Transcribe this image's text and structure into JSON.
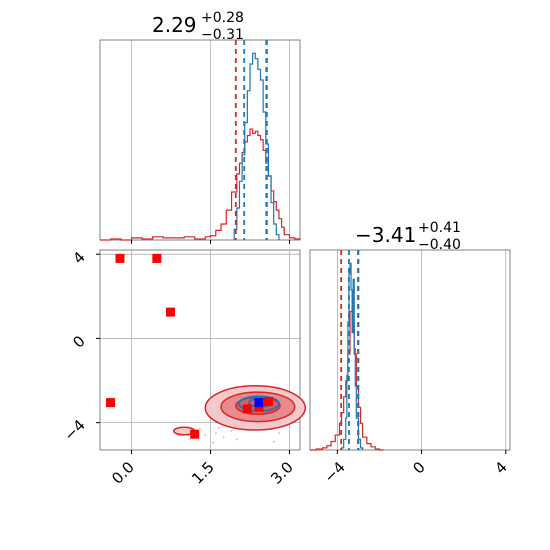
{
  "colors": {
    "red": "#d62728",
    "blue": "#1f77b4",
    "marker_red": "#ff0000",
    "marker_blue": "#0000ff",
    "grid": "#b0b0b0",
    "frame": "#808080",
    "fill_light": "#f4c9cb",
    "fill_mid": "#e98a8f",
    "fill_dark": "#df5a61"
  },
  "chart_data": [
    {
      "type": "histogram",
      "panel": "top-left",
      "title_value": "2.29",
      "title_plus": "+0.28",
      "title_minus": "−0.31",
      "xlim": [
        -0.6,
        3.2
      ],
      "grid": true,
      "quantile_lines": {
        "red": [
          1.98,
          2.57
        ],
        "blue": [
          2.14,
          2.56
        ]
      },
      "series": [
        {
          "color": "red",
          "bin_edges": [
            -0.6,
            -0.4,
            -0.2,
            0.0,
            0.2,
            0.4,
            0.6,
            0.8,
            1.0,
            1.2,
            1.4,
            1.5,
            1.6,
            1.7,
            1.8,
            1.9,
            2.0,
            2.05,
            2.1,
            2.15,
            2.2,
            2.25,
            2.3,
            2.35,
            2.4,
            2.45,
            2.5,
            2.55,
            2.6,
            2.65,
            2.7,
            2.75,
            2.8,
            2.85,
            2.9,
            3.0,
            3.1,
            3.2
          ],
          "heights": [
            0,
            1,
            0,
            2,
            1,
            3,
            2,
            2,
            3,
            1,
            3,
            4,
            9,
            15,
            28,
            45,
            62,
            72,
            82,
            92,
            98,
            104,
            100,
            102,
            98,
            94,
            84,
            72,
            60,
            46,
            36,
            28,
            20,
            12,
            5,
            2,
            1
          ]
        },
        {
          "color": "blue",
          "bin_edges": [
            1.95,
            2.0,
            2.05,
            2.1,
            2.15,
            2.2,
            2.25,
            2.3,
            2.35,
            2.4,
            2.45,
            2.5,
            2.55,
            2.6,
            2.65,
            2.7,
            2.75,
            2.8
          ],
          "heights": [
            10,
            30,
            55,
            80,
            110,
            140,
            165,
            175,
            170,
            160,
            150,
            120,
            90,
            60,
            35,
            15,
            5
          ]
        }
      ]
    },
    {
      "type": "scatter",
      "panel": "bottom-left",
      "xlim": [
        -0.6,
        3.2
      ],
      "ylim": [
        -5.3,
        4.2
      ],
      "xticks": [
        "0.0",
        "1.5",
        "3.0"
      ],
      "xtick_values": [
        0.0,
        1.5,
        3.0
      ],
      "yticks": [
        "4",
        "0",
        "−4"
      ],
      "ytick_values": [
        4,
        0,
        -4
      ],
      "grid": true,
      "red_points": [
        [
          -0.22,
          3.8
        ],
        [
          0.48,
          3.8
        ],
        [
          0.74,
          1.25
        ],
        [
          -0.4,
          -3.05
        ],
        [
          1.2,
          -4.55
        ],
        [
          2.2,
          -3.35
        ],
        [
          2.6,
          -3.0
        ],
        [
          2.42,
          -3.25
        ]
      ],
      "blue_points": [
        [
          2.42,
          -3.05
        ]
      ],
      "contours": {
        "red_fills": [
          {
            "cx": 2.35,
            "cy": -3.3,
            "rx": 0.95,
            "ry": 1.05,
            "level": "light"
          },
          {
            "cx": 2.4,
            "cy": -3.25,
            "rx": 0.7,
            "ry": 0.7,
            "level": "mid"
          },
          {
            "cx": 2.4,
            "cy": -3.2,
            "rx": 0.42,
            "ry": 0.4,
            "level": "dark"
          }
        ],
        "blue_lines": [
          {
            "cx": 2.42,
            "cy": -3.1,
            "rx": 0.38,
            "ry": 0.35
          },
          {
            "cx": 2.45,
            "cy": -3.05,
            "rx": 0.22,
            "ry": 0.2
          }
        ],
        "tail": {
          "cx": 1.0,
          "cy": -4.4,
          "rx": 0.2,
          "ry": 0.18
        }
      }
    },
    {
      "type": "histogram",
      "panel": "bottom-right",
      "title_value": "−3.41",
      "title_plus": "+0.41",
      "title_minus": "−0.40",
      "xlim": [
        -5.3,
        4.2
      ],
      "xticks": [
        "−4",
        "0",
        "4"
      ],
      "xtick_values": [
        -4,
        0,
        4
      ],
      "grid": true,
      "quantile_lines": {
        "red": [
          -3.82,
          -3.0
        ],
        "blue": [
          -3.45,
          -3.02
        ]
      },
      "series": [
        {
          "color": "red",
          "bin_edges": [
            -5.3,
            -5.0,
            -4.7,
            -4.5,
            -4.3,
            -4.1,
            -3.9,
            -3.8,
            -3.7,
            -3.6,
            -3.5,
            -3.4,
            -3.3,
            -3.2,
            -3.1,
            -3.0,
            -2.9,
            -2.8,
            -2.6,
            -2.4,
            -2.2,
            -2.0,
            -1.8
          ],
          "heights": [
            0,
            1,
            2,
            4,
            8,
            14,
            25,
            35,
            50,
            65,
            90,
            130,
            120,
            90,
            60,
            40,
            25,
            12,
            6,
            3,
            1,
            0
          ]
        },
        {
          "color": "blue",
          "bin_edges": [
            -3.8,
            -3.7,
            -3.6,
            -3.55,
            -3.5,
            -3.45,
            -3.4,
            -3.35,
            -3.3,
            -3.25,
            -3.2,
            -3.15,
            -3.1,
            -3.0,
            -2.9,
            -2.8
          ],
          "heights": [
            2,
            10,
            30,
            70,
            120,
            165,
            175,
            150,
            110,
            160,
            95,
            60,
            30,
            10,
            2
          ]
        }
      ]
    }
  ]
}
